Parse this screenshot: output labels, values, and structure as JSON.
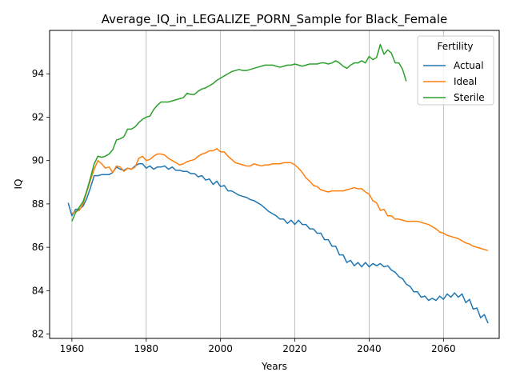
{
  "chart_data": {
    "type": "line",
    "title": "Average_IQ_in_LEGALIZE_PORN_Sample for Black_Female",
    "xlabel": "Years",
    "ylabel": "IQ",
    "xlim": [
      1954,
      2075
    ],
    "ylim": [
      81.8,
      96.0
    ],
    "x_ticks": [
      1960,
      1980,
      2000,
      2020,
      2040,
      2060
    ],
    "y_ticks": [
      82,
      84,
      86,
      88,
      90,
      92,
      94
    ],
    "grid": "x-only",
    "legend": {
      "title": "Fertility",
      "placement": "top-right"
    },
    "x_start": 1959,
    "x_step": 1,
    "series": [
      {
        "name": "Actual",
        "color": "#1f77b4",
        "values": [
          88.05,
          87.45,
          87.75,
          87.75,
          87.9,
          88.25,
          88.75,
          89.3,
          89.3,
          89.35,
          89.35,
          89.35,
          89.45,
          89.7,
          89.6,
          89.55,
          89.65,
          89.6,
          89.75,
          89.85,
          89.85,
          89.65,
          89.75,
          89.6,
          89.7,
          89.7,
          89.75,
          89.6,
          89.7,
          89.55,
          89.55,
          89.5,
          89.5,
          89.4,
          89.4,
          89.25,
          89.3,
          89.1,
          89.15,
          88.9,
          89.05,
          88.8,
          88.85,
          88.6,
          88.6,
          88.5,
          88.4,
          88.35,
          88.3,
          88.2,
          88.15,
          88.05,
          87.95,
          87.8,
          87.65,
          87.55,
          87.45,
          87.3,
          87.3,
          87.1,
          87.25,
          87.05,
          87.25,
          87.05,
          87.05,
          86.85,
          86.85,
          86.65,
          86.65,
          86.35,
          86.35,
          86.05,
          86.05,
          85.65,
          85.65,
          85.3,
          85.4,
          85.15,
          85.3,
          85.1,
          85.3,
          85.1,
          85.25,
          85.15,
          85.25,
          85.1,
          85.15,
          84.95,
          84.85,
          84.65,
          84.55,
          84.3,
          84.2,
          83.95,
          83.95,
          83.7,
          83.75,
          83.55,
          83.65,
          83.55,
          83.75,
          83.6,
          83.85,
          83.7,
          83.9,
          83.7,
          83.85,
          83.45,
          83.6,
          83.15,
          83.2,
          82.75,
          82.9,
          82.5
        ]
      },
      {
        "name": "Ideal",
        "color": "#ff7f0e",
        "values": [
          null,
          87.55,
          87.65,
          87.7,
          88.0,
          88.55,
          89.1,
          89.6,
          90.0,
          89.85,
          89.65,
          89.7,
          89.45,
          89.75,
          89.7,
          89.5,
          89.65,
          89.6,
          89.7,
          90.1,
          90.2,
          90.0,
          90.05,
          90.2,
          90.3,
          90.3,
          90.25,
          90.1,
          90.0,
          89.9,
          89.8,
          89.85,
          89.95,
          90.0,
          90.05,
          90.2,
          90.3,
          90.35,
          90.45,
          90.45,
          90.55,
          90.4,
          90.4,
          90.2,
          90.05,
          89.9,
          89.85,
          89.8,
          89.75,
          89.75,
          89.85,
          89.8,
          89.75,
          89.8,
          89.8,
          89.85,
          89.85,
          89.85,
          89.9,
          89.9,
          89.9,
          89.8,
          89.65,
          89.45,
          89.2,
          89.05,
          88.85,
          88.8,
          88.65,
          88.6,
          88.55,
          88.6,
          88.6,
          88.6,
          88.6,
          88.65,
          88.7,
          88.75,
          88.7,
          88.7,
          88.55,
          88.45,
          88.15,
          88.05,
          87.7,
          87.75,
          87.45,
          87.45,
          87.3,
          87.3,
          87.25,
          87.2,
          87.2,
          87.2,
          87.2,
          87.15,
          87.1,
          87.05,
          86.95,
          86.85,
          86.7,
          86.65,
          86.55,
          86.5,
          86.45,
          86.4,
          86.3,
          86.2,
          86.15,
          86.05,
          86.0,
          85.95,
          85.9,
          85.85
        ]
      },
      {
        "name": "Sterile",
        "color": "#2ca02c",
        "values": [
          null,
          87.2,
          87.6,
          87.85,
          88.1,
          88.6,
          89.2,
          89.85,
          90.2,
          90.15,
          90.2,
          90.3,
          90.5,
          90.95,
          91.0,
          91.1,
          91.45,
          91.45,
          91.55,
          91.75,
          91.9,
          92.0,
          92.05,
          92.35,
          92.55,
          92.7,
          92.7,
          92.7,
          92.75,
          92.8,
          92.85,
          92.9,
          93.1,
          93.05,
          93.05,
          93.2,
          93.3,
          93.35,
          93.45,
          93.55,
          93.7,
          93.8,
          93.9,
          94.0,
          94.1,
          94.15,
          94.2,
          94.15,
          94.15,
          94.2,
          94.25,
          94.3,
          94.35,
          94.4,
          94.4,
          94.4,
          94.35,
          94.3,
          94.35,
          94.4,
          94.4,
          94.45,
          94.4,
          94.35,
          94.4,
          94.45,
          94.45,
          94.45,
          94.5,
          94.5,
          94.45,
          94.5,
          94.6,
          94.5,
          94.35,
          94.25,
          94.4,
          94.5,
          94.5,
          94.6,
          94.5,
          94.8,
          94.65,
          94.75,
          95.35,
          94.9,
          95.1,
          94.95,
          94.5,
          94.5,
          94.2,
          93.65
        ]
      }
    ]
  }
}
